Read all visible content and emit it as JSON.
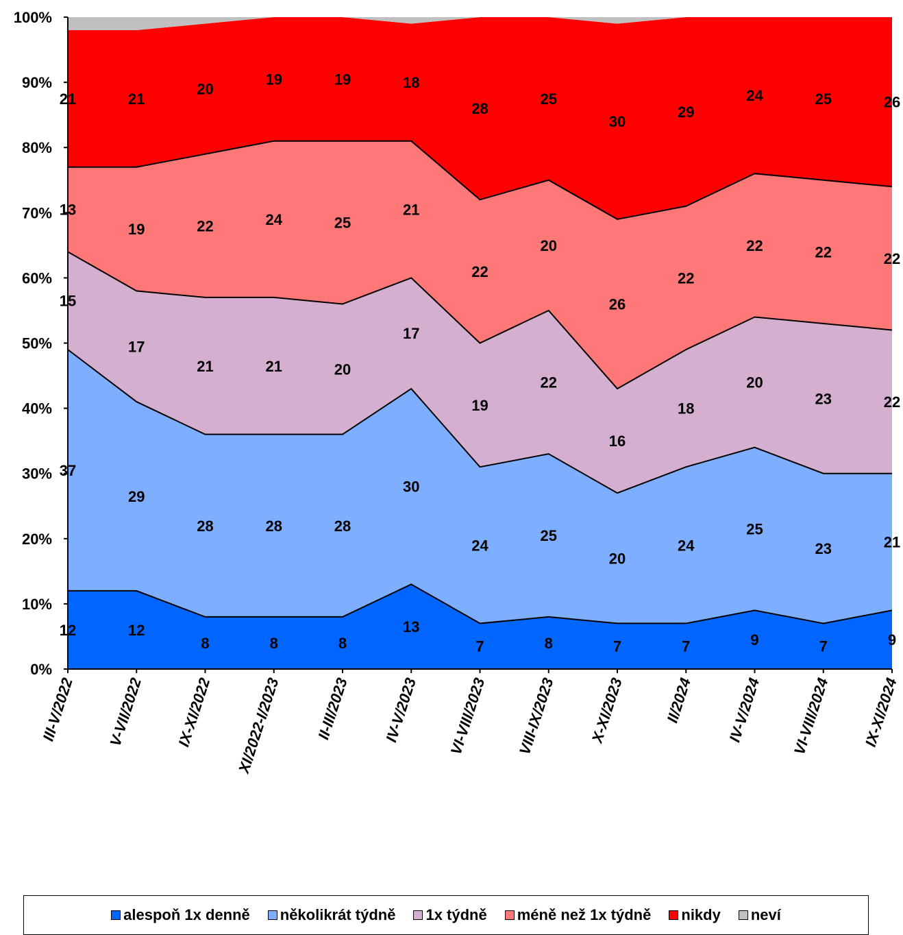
{
  "chart_data": {
    "type": "area",
    "stacked": true,
    "percent_stacked": true,
    "categories": [
      "III-V/2022",
      "V-VII/2022",
      "IX-XI/2022",
      "XI/2022-I/2023",
      "II-III/2023",
      "IV-V/2023",
      "VI-VIII/2023",
      "VIII-IX/2023",
      "X-XI/2023",
      "II/2024",
      "IV-V/2024",
      "VI-VIII/2024",
      "IX-XI/2024"
    ],
    "series": [
      {
        "name": "alespoň 1x denně",
        "color": "#0066FF",
        "values": [
          12,
          12,
          8,
          8,
          8,
          13,
          7,
          8,
          7,
          7,
          9,
          7,
          9
        ]
      },
      {
        "name": "několikrát týdně",
        "color": "#7EAEFF",
        "values": [
          37,
          29,
          28,
          28,
          28,
          30,
          24,
          25,
          20,
          24,
          25,
          23,
          21
        ]
      },
      {
        "name": "1x týdně",
        "color": "#D4AFD0",
        "values": [
          15,
          17,
          21,
          21,
          20,
          17,
          19,
          22,
          16,
          18,
          20,
          23,
          22
        ]
      },
      {
        "name": "méně než 1x týdně",
        "color": "#FF7878",
        "values": [
          13,
          19,
          22,
          24,
          25,
          21,
          22,
          20,
          26,
          22,
          22,
          22,
          22
        ]
      },
      {
        "name": "nikdy",
        "color": "#FF0000",
        "values": [
          21,
          21,
          20,
          19,
          19,
          18,
          28,
          25,
          30,
          29,
          24,
          25,
          26
        ]
      },
      {
        "name": "neví",
        "color": "#C0C0C0",
        "values": [
          2,
          2,
          1,
          0,
          0,
          1,
          0,
          0,
          1,
          0,
          0,
          0,
          0
        ]
      }
    ],
    "y_ticks": [
      "0%",
      "10%",
      "20%",
      "30%",
      "40%",
      "50%",
      "60%",
      "70%",
      "80%",
      "90%",
      "100%"
    ],
    "ylim": [
      0,
      100
    ],
    "grid": false,
    "legend_position": "bottom",
    "data_labels_for_series": [
      0,
      1,
      2,
      3,
      4
    ]
  }
}
